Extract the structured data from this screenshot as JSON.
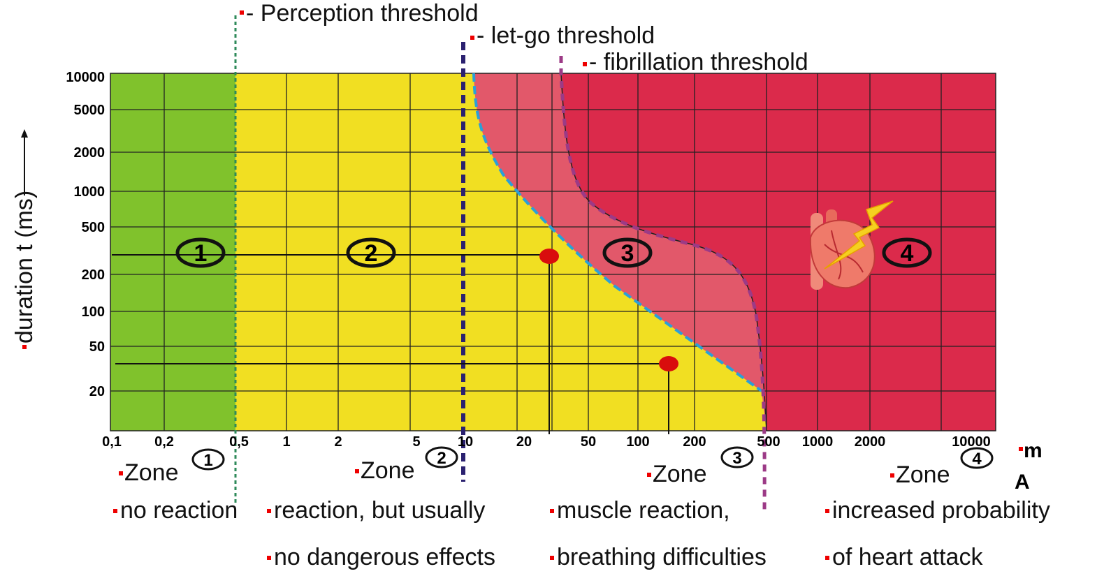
{
  "thresholds": [
    "- Perception threshold",
    "- let-go threshold",
    "- fibrillation threshold"
  ],
  "y_axis": {
    "label": "duration t (ms)",
    "ticks": [
      "10000",
      "5000",
      "2000",
      "1000",
      "500",
      "200",
      "100",
      "50",
      "20"
    ]
  },
  "x_axis": {
    "unit": [
      "m",
      "A"
    ],
    "ticks": [
      "0,1",
      "0,2",
      "0,5",
      "1",
      "2",
      "5",
      "10",
      "20",
      "50",
      "100",
      "200",
      "500",
      "1000",
      "2000",
      "10000"
    ]
  },
  "zones": [
    {
      "label": "Zone",
      "number": "1",
      "description": [
        "no reaction"
      ]
    },
    {
      "label": "Zone",
      "number": "2",
      "description": [
        "reaction, but usually",
        "no dangerous effects"
      ]
    },
    {
      "label": "Zone",
      "number": "3",
      "description": [
        "muscle reaction,",
        "breathing difficulties"
      ]
    },
    {
      "label": "Zone",
      "number": "4",
      "description": [
        "increased probability",
        "of heart attack"
      ]
    }
  ]
}
